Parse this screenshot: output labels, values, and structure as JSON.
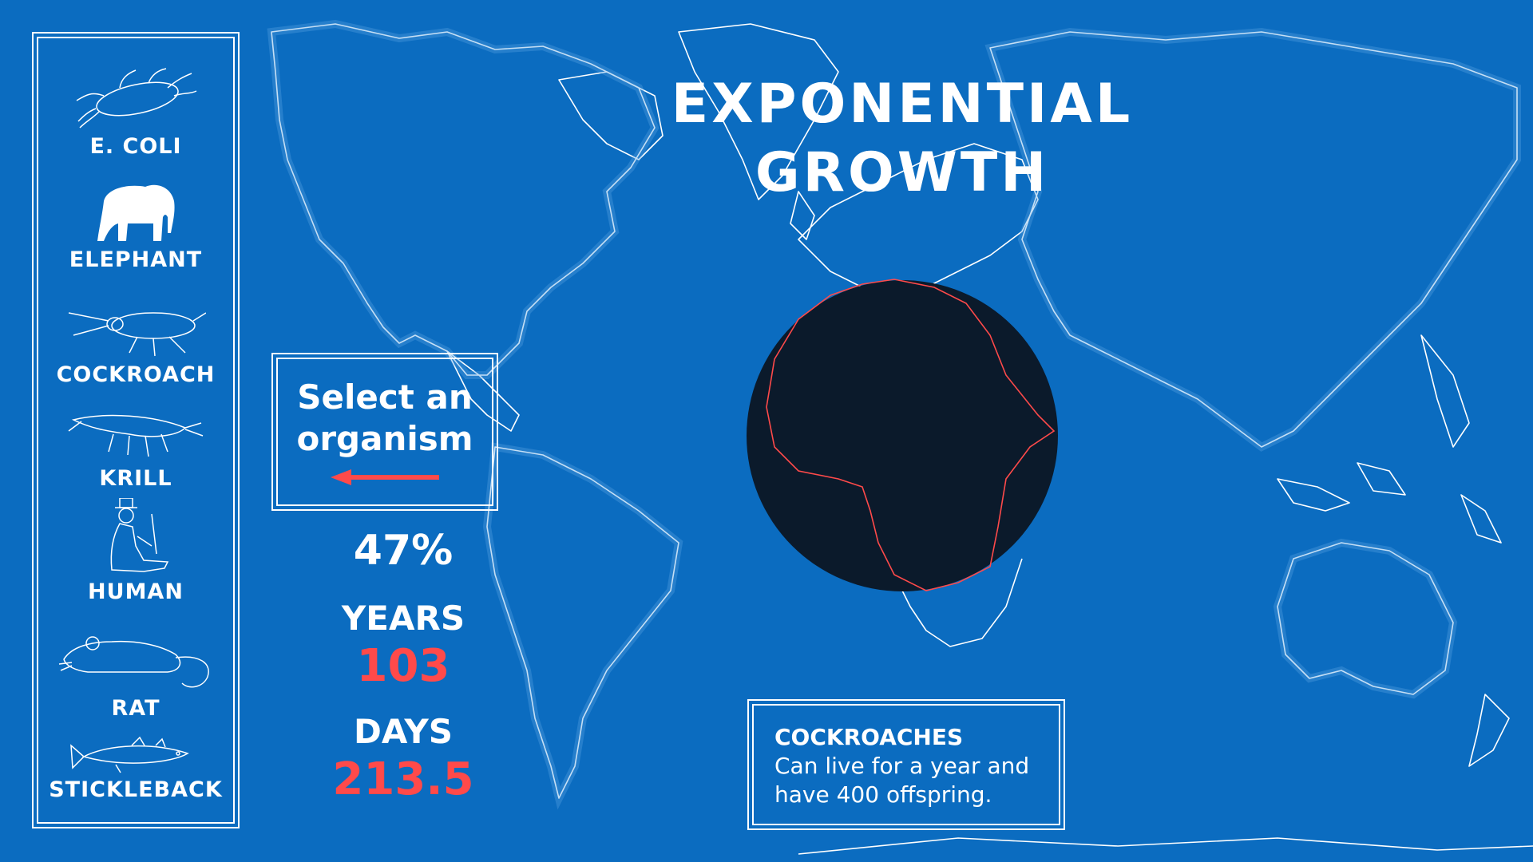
{
  "title_line1": "EXPONENTIAL",
  "title_line2": "GROWTH",
  "organisms": [
    {
      "label": "E. COLI",
      "icon": "e-coli-icon"
    },
    {
      "label": "ELEPHANT",
      "icon": "elephant-icon"
    },
    {
      "label": "COCKROACH",
      "icon": "cockroach-icon"
    },
    {
      "label": "KRILL",
      "icon": "krill-icon"
    },
    {
      "label": "HUMAN",
      "icon": "human-icon"
    },
    {
      "label": "RAT",
      "icon": "rat-icon"
    },
    {
      "label": "STICKLEBACK",
      "icon": "stickleback-icon"
    }
  ],
  "select_prompt_line1": "Select an",
  "select_prompt_line2": "organism",
  "progress_percent": "47%",
  "years_label": "YEARS",
  "years_value": "103",
  "days_label": "DAYS",
  "days_value": "213.5",
  "info": {
    "title": "COCKROACHES",
    "description_line1": "Can live for a year and",
    "description_line2": "have 400 offspring."
  },
  "colors": {
    "background": "#0b6cc0",
    "accent_red": "#ff4a4a",
    "circle": "#0b1a2b",
    "line": "#ffffff"
  }
}
